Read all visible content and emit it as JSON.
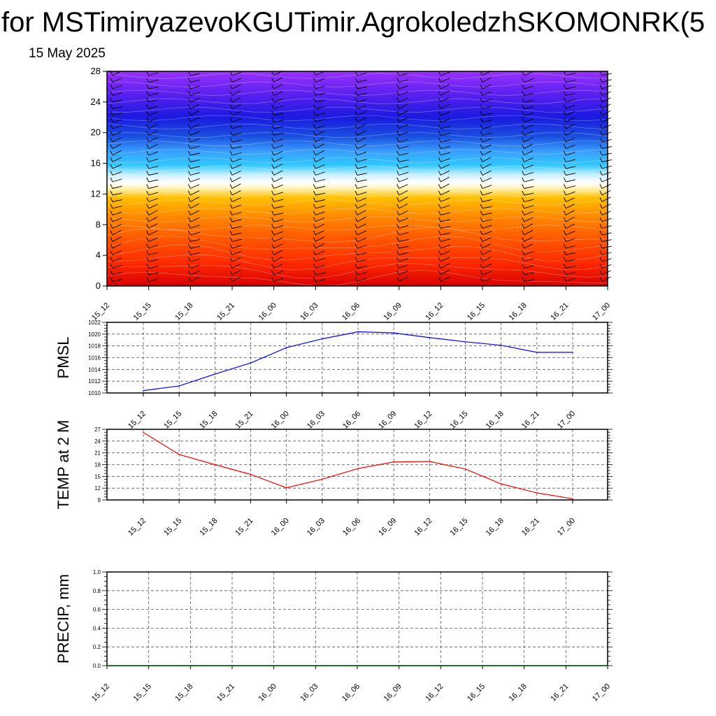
{
  "page": {
    "title": "for MSTimiryazevoKGUTimir.AgrokoledzhSKOMONRK(5",
    "date": "15 May 2025"
  },
  "colors": {
    "pmsl_line": "#0000ff",
    "temp_line": "#ff0000",
    "precip_line": "#006400",
    "frame": "#000000",
    "grid": "#555555"
  },
  "chart_data": [
    {
      "type": "heatmap",
      "title": "",
      "xlabel": "",
      "ylabel": "",
      "x_ticklabels": [
        "15_12",
        "15_15",
        "15_18",
        "15_21",
        "16_00",
        "16_03",
        "16_06",
        "16_09",
        "16_12",
        "16_15",
        "16_18",
        "16_21",
        "17_00"
      ],
      "y_ticks": [
        0,
        4,
        8,
        12,
        16,
        20,
        24,
        28
      ],
      "ylim": [
        0,
        28
      ],
      "colormap": [
        {
          "level": 0,
          "color": "#d80000"
        },
        {
          "level": 3,
          "color": "#ff2a00"
        },
        {
          "level": 6,
          "color": "#ff5500"
        },
        {
          "level": 9,
          "color": "#ff8800"
        },
        {
          "level": 11.5,
          "color": "#ffc000"
        },
        {
          "level": 12.8,
          "color": "#fff5c0"
        },
        {
          "level": 13.5,
          "color": "#ffffff"
        },
        {
          "level": 14.5,
          "color": "#c8f0ff"
        },
        {
          "level": 15.8,
          "color": "#30c8ff"
        },
        {
          "level": 17.5,
          "color": "#3aa0ff"
        },
        {
          "level": 19.5,
          "color": "#1a50e0"
        },
        {
          "level": 22,
          "color": "#1a1ae0"
        },
        {
          "level": 25,
          "color": "#5a20f0"
        },
        {
          "level": 28,
          "color": "#9a30ff"
        }
      ],
      "wind_barbs": "present"
    },
    {
      "type": "line",
      "ylabel": "PMSL",
      "ylim": [
        1010,
        1022
      ],
      "y_ticks": [
        1010,
        1012,
        1014,
        1016,
        1018,
        1020,
        1022
      ],
      "x_ticklabels": [
        "15_12",
        "15_15",
        "15_18",
        "15_21",
        "16_00",
        "16_03",
        "16_06",
        "16_09",
        "16_12",
        "16_15",
        "16_18",
        "16_21",
        "17_00"
      ],
      "series": [
        {
          "values": [
            1010.4,
            1011.2,
            1013.2,
            1015.1,
            1017.7,
            1019.2,
            1020.4,
            1020.2,
            1019.4,
            1018.7,
            1018.1,
            1016.9,
            1016.9
          ]
        }
      ]
    },
    {
      "type": "line",
      "ylabel": "TEMP at 2 M",
      "ylim": [
        9,
        27
      ],
      "y_ticks": [
        9,
        12,
        15,
        18,
        21,
        24,
        27
      ],
      "x_ticklabels": [
        "15_12",
        "15_15",
        "15_18",
        "15_21",
        "16_00",
        "16_03",
        "16_06",
        "16_09",
        "16_12",
        "16_15",
        "16_18",
        "16_21",
        "17_00"
      ],
      "series": [
        {
          "values": [
            26.2,
            20.6,
            18.0,
            15.5,
            12.1,
            14.3,
            17.0,
            18.7,
            18.8,
            16.9,
            13.1,
            10.8,
            9.3
          ]
        }
      ]
    },
    {
      "type": "line",
      "ylabel": "PRECIP, mm",
      "ylim": [
        0.0,
        1.0
      ],
      "y_ticks": [
        0.0,
        0.2,
        0.4,
        0.6,
        0.8,
        1.0
      ],
      "y_ticklabels": [
        "0.0",
        "0.2",
        "0.4",
        "0.6",
        "0.8",
        "1.0"
      ],
      "x_ticklabels": [
        "15_12",
        "15_15",
        "15_18",
        "15_21",
        "16_00",
        "16_03",
        "16_06",
        "16_09",
        "16_12",
        "16_15",
        "16_18",
        "16_21",
        "17_00"
      ],
      "series": [
        {
          "values": [
            0,
            0,
            0,
            0,
            0,
            0,
            0,
            0,
            0,
            0,
            0,
            0,
            0
          ]
        }
      ]
    }
  ]
}
